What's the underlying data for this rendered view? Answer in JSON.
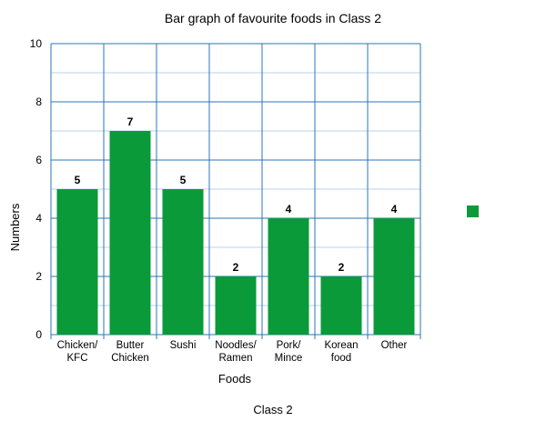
{
  "chart_data": {
    "type": "bar",
    "title": "Bar graph of favourite foods in Class 2",
    "xlabel": "Foods",
    "ylabel": "Numbers",
    "footer": "Class 2",
    "categories": [
      [
        "Chicken/",
        "KFC"
      ],
      [
        "Butter",
        "Chicken"
      ],
      [
        "Sushi"
      ],
      [
        "Noodles/",
        "Ramen"
      ],
      [
        "Pork/",
        "Mince"
      ],
      [
        "Korean",
        "food"
      ],
      [
        "Other"
      ]
    ],
    "values": [
      5,
      7,
      5,
      2,
      4,
      2,
      4
    ],
    "ylim": [
      0,
      10
    ],
    "yticks": [
      0,
      2,
      4,
      6,
      8,
      10
    ],
    "grid": true,
    "legend": {
      "placement": "right",
      "entries": [
        ""
      ]
    },
    "colors": {
      "bar": "#0a9a3a",
      "grid_major": "#2e74b5",
      "grid_minor": "#b8d3ea"
    }
  }
}
